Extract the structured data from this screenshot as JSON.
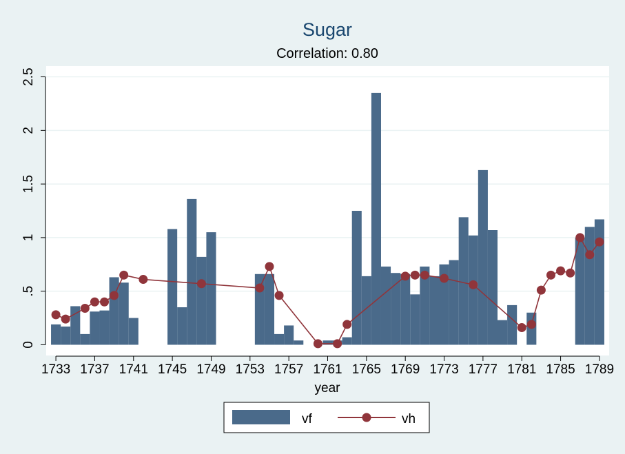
{
  "chart_data": {
    "type": "bar",
    "title": "Sugar",
    "subtitle": "Correlation: 0.80",
    "xlabel": "year",
    "ylabel": "",
    "xlim": [
      1732,
      1790
    ],
    "ylim": [
      -0.1,
      2.6
    ],
    "x_ticks": [
      1733,
      1737,
      1741,
      1745,
      1749,
      1753,
      1757,
      1761,
      1765,
      1769,
      1773,
      1777,
      1781,
      1785,
      1789
    ],
    "y_ticks": [
      {
        "value": 0,
        "label": "0"
      },
      {
        "value": 0.5,
        "label": ".5"
      },
      {
        "value": 1,
        "label": "1"
      },
      {
        "value": 1.5,
        "label": "1.5"
      },
      {
        "value": 2,
        "label": "2"
      },
      {
        "value": 2.5,
        "label": "2.5"
      }
    ],
    "grid": true,
    "legend_position": "bottom",
    "series": [
      {
        "name": "vf",
        "type": "bar",
        "color": "#4a6a8a",
        "points": [
          [
            1733,
            0.19
          ],
          [
            1734,
            0.17
          ],
          [
            1735,
            0.36
          ],
          [
            1736,
            0.1
          ],
          [
            1737,
            0.31
          ],
          [
            1738,
            0.32
          ],
          [
            1739,
            0.63
          ],
          [
            1740,
            0.58
          ],
          [
            1741,
            0.25
          ],
          [
            1745,
            1.08
          ],
          [
            1746,
            0.35
          ],
          [
            1747,
            1.36
          ],
          [
            1748,
            0.82
          ],
          [
            1749,
            1.05
          ],
          [
            1754,
            0.66
          ],
          [
            1755,
            0.66
          ],
          [
            1756,
            0.1
          ],
          [
            1757,
            0.18
          ],
          [
            1758,
            0.04
          ],
          [
            1761,
            0.04
          ],
          [
            1762,
            0.04
          ],
          [
            1763,
            0.07
          ],
          [
            1764,
            1.25
          ],
          [
            1765,
            0.64
          ],
          [
            1766,
            2.35
          ],
          [
            1767,
            0.73
          ],
          [
            1768,
            0.67
          ],
          [
            1769,
            0.66
          ],
          [
            1770,
            0.47
          ],
          [
            1771,
            0.73
          ],
          [
            1772,
            0.64
          ],
          [
            1773,
            0.75
          ],
          [
            1774,
            0.79
          ],
          [
            1775,
            1.19
          ],
          [
            1776,
            1.02
          ],
          [
            1777,
            1.63
          ],
          [
            1778,
            1.07
          ],
          [
            1779,
            0.23
          ],
          [
            1780,
            0.37
          ],
          [
            1782,
            0.3
          ],
          [
            1787,
            1.0
          ],
          [
            1788,
            1.1
          ],
          [
            1789,
            1.17
          ]
        ]
      },
      {
        "name": "vh",
        "type": "line",
        "color": "#90353b",
        "points": [
          [
            1733,
            0.28
          ],
          [
            1734,
            0.24
          ],
          [
            1736,
            0.34
          ],
          [
            1737,
            0.4
          ],
          [
            1738,
            0.4
          ],
          [
            1739,
            0.46
          ],
          [
            1740,
            0.65
          ],
          [
            1742,
            0.61
          ],
          [
            1748,
            0.57
          ],
          [
            1754,
            0.53
          ],
          [
            1755,
            0.73
          ],
          [
            1756,
            0.46
          ],
          [
            1760,
            0.01
          ],
          [
            1762,
            0.01
          ],
          [
            1763,
            0.19
          ],
          [
            1769,
            0.64
          ],
          [
            1770,
            0.65
          ],
          [
            1771,
            0.65
          ],
          [
            1773,
            0.62
          ],
          [
            1776,
            0.56
          ],
          [
            1781,
            0.16
          ],
          [
            1782,
            0.19
          ],
          [
            1783,
            0.51
          ],
          [
            1784,
            0.65
          ],
          [
            1785,
            0.69
          ],
          [
            1786,
            0.67
          ],
          [
            1787,
            1.0
          ],
          [
            1788,
            0.84
          ],
          [
            1789,
            0.96
          ]
        ]
      }
    ]
  }
}
